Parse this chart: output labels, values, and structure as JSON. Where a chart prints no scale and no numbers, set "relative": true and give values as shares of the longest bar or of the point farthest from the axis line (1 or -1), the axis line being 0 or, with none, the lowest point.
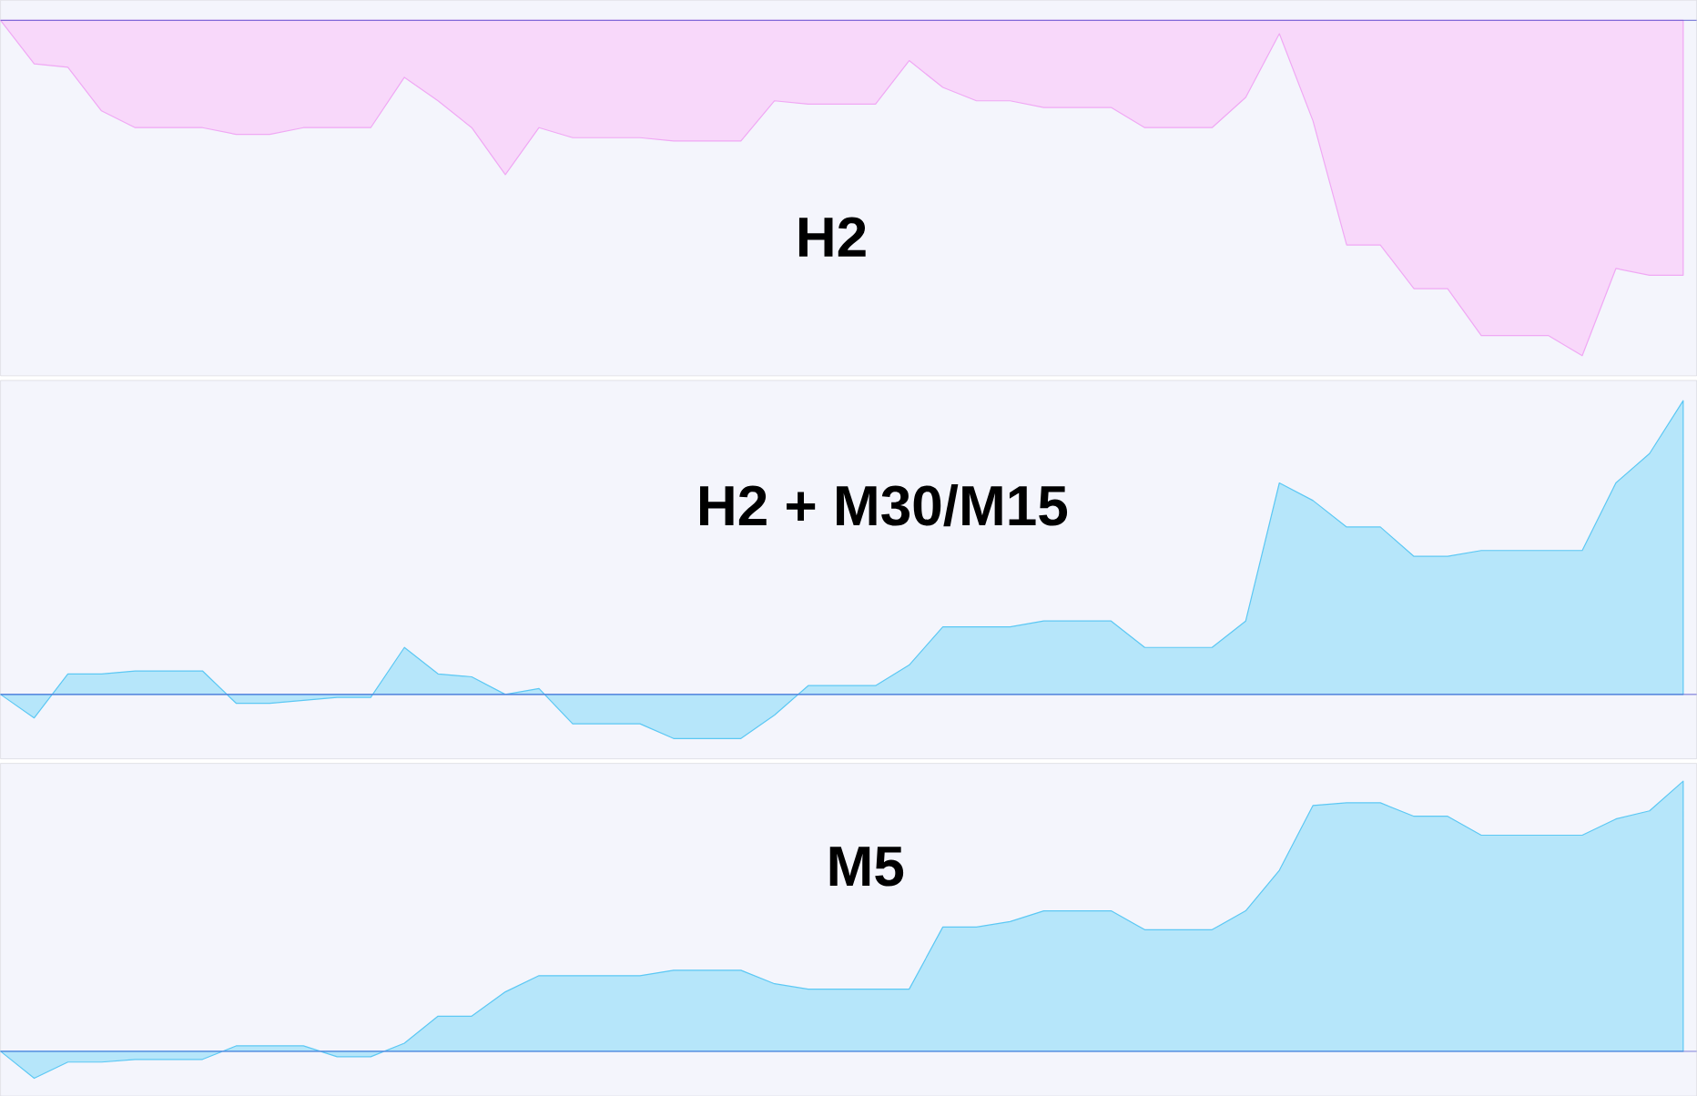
{
  "chart_data": [
    {
      "type": "area",
      "title": "H2",
      "relative": true,
      "ref_lines": [
        {
          "axis": "y",
          "value": 0,
          "color": "#4646c8"
        }
      ],
      "categories": [
        null,
        null,
        null,
        null,
        null,
        null,
        null,
        null,
        null,
        null,
        null,
        null,
        null,
        null,
        null,
        null,
        null,
        null,
        null,
        null,
        null,
        null,
        null,
        null,
        null,
        null,
        null,
        null,
        null,
        null,
        null,
        null,
        null,
        null,
        null,
        null,
        null,
        null,
        null,
        null,
        null,
        null,
        null,
        null,
        null,
        null,
        null,
        null,
        null,
        null,
        null
      ],
      "series": [
        {
          "color": "#f0a8f4",
          "values": [
            0,
            -0.13,
            -0.14,
            -0.27,
            -0.32,
            -0.32,
            -0.32,
            -0.34,
            -0.34,
            -0.32,
            -0.32,
            -0.32,
            -0.17,
            -0.24,
            -0.32,
            -0.46,
            -0.32,
            -0.35,
            -0.35,
            -0.35,
            -0.36,
            -0.36,
            -0.36,
            -0.24,
            -0.25,
            -0.25,
            -0.25,
            -0.12,
            -0.2,
            -0.24,
            -0.24,
            -0.26,
            -0.26,
            -0.26,
            -0.32,
            -0.32,
            -0.32,
            -0.23,
            -0.04,
            -0.3,
            -0.67,
            -0.67,
            -0.8,
            -0.8,
            -0.94,
            -0.94,
            -0.94,
            -1,
            -0.74,
            -0.76,
            -0.76
          ]
        }
      ]
    },
    {
      "type": "area",
      "title": "H2 + M30/M15",
      "relative": true,
      "ref_lines": [
        {
          "axis": "y",
          "value": 0,
          "color": "#4646c8"
        }
      ],
      "categories": [
        null,
        null,
        null,
        null,
        null,
        null,
        null,
        null,
        null,
        null,
        null,
        null,
        null,
        null,
        null,
        null,
        null,
        null,
        null,
        null,
        null,
        null,
        null,
        null,
        null,
        null,
        null,
        null,
        null,
        null,
        null,
        null,
        null,
        null,
        null,
        null,
        null,
        null,
        null,
        null,
        null,
        null,
        null,
        null,
        null,
        null,
        null,
        null,
        null,
        null,
        null
      ],
      "series": [
        {
          "color": "#5cc8f4",
          "values": [
            0,
            -0.08,
            0.07,
            0.07,
            0.08,
            0.08,
            0.08,
            -0.03,
            -0.03,
            -0.02,
            -0.01,
            -0.01,
            0.16,
            0.07,
            0.06,
            0,
            0.02,
            -0.1,
            -0.1,
            -0.1,
            -0.15,
            -0.15,
            -0.15,
            -0.07,
            0.03,
            0.03,
            0.03,
            0.1,
            0.23,
            0.23,
            0.23,
            0.25,
            0.25,
            0.25,
            0.16,
            0.16,
            0.16,
            0.25,
            0.72,
            0.66,
            0.57,
            0.57,
            0.47,
            0.47,
            0.49,
            0.49,
            0.49,
            0.49,
            0.72,
            0.82,
            1
          ]
        }
      ]
    },
    {
      "type": "area",
      "title": "M5",
      "relative": true,
      "ref_lines": [
        {
          "axis": "y",
          "value": 0,
          "color": "#4646c8"
        }
      ],
      "categories": [
        null,
        null,
        null,
        null,
        null,
        null,
        null,
        null,
        null,
        null,
        null,
        null,
        null,
        null,
        null,
        null,
        null,
        null,
        null,
        null,
        null,
        null,
        null,
        null,
        null,
        null,
        null,
        null,
        null,
        null,
        null,
        null,
        null,
        null,
        null,
        null,
        null,
        null,
        null,
        null,
        null,
        null,
        null,
        null,
        null,
        null,
        null,
        null,
        null,
        null,
        null
      ],
      "series": [
        {
          "color": "#5cc8f4",
          "values": [
            0,
            -0.1,
            -0.04,
            -0.04,
            -0.03,
            -0.03,
            -0.03,
            0.02,
            0.02,
            0.02,
            -0.02,
            -0.02,
            0.03,
            0.13,
            0.13,
            0.22,
            0.28,
            0.28,
            0.28,
            0.28,
            0.3,
            0.3,
            0.3,
            0.25,
            0.23,
            0.23,
            0.23,
            0.23,
            0.46,
            0.46,
            0.48,
            0.52,
            0.52,
            0.52,
            0.45,
            0.45,
            0.45,
            0.52,
            0.67,
            0.91,
            0.92,
            0.92,
            0.87,
            0.87,
            0.8,
            0.8,
            0.8,
            0.8,
            0.86,
            0.89,
            1
          ]
        }
      ]
    }
  ]
}
